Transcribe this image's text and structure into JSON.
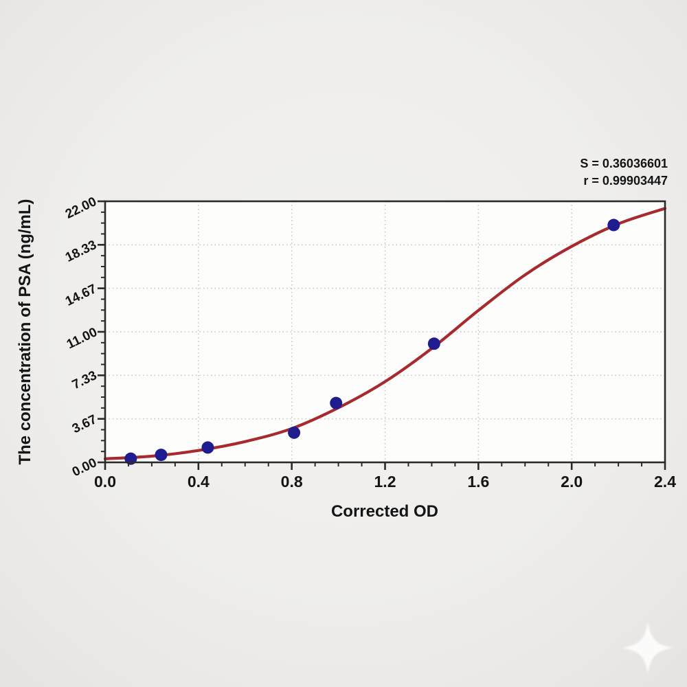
{
  "chart_data": {
    "type": "scatter",
    "title": "",
    "xlabel": "Corrected OD",
    "ylabel": "The concentration of PSA (ng/mL)",
    "annotation": {
      "line1": "S = 0.36036601",
      "line2": "r = 0.99903447"
    },
    "xlim": [
      0,
      2.4
    ],
    "ylim": [
      0,
      22
    ],
    "x_ticks": {
      "values": [
        0,
        0.4,
        0.8,
        1.2,
        1.6,
        2.0,
        2.4
      ],
      "labels": [
        "0.0",
        "0.4",
        "0.8",
        "1.2",
        "1.6",
        "2.0",
        "2.4"
      ],
      "minor_step": 0.1
    },
    "y_ticks": {
      "values": [
        0,
        3.6667,
        7.3333,
        11,
        14.6667,
        18.3333,
        22
      ],
      "labels": [
        "0.00",
        "3.67",
        "7.33",
        "11.00",
        "14.67",
        "18.33",
        "22.00"
      ],
      "minors_between": 3
    },
    "grid": true,
    "legend": false,
    "series": [
      {
        "name": "standard points",
        "kind": "scatter",
        "x": [
          0.11,
          0.24,
          0.44,
          0.81,
          0.99,
          1.41,
          2.18
        ],
        "y": [
          0.31,
          0.63,
          1.25,
          2.5,
          5.0,
          10.0,
          20.0
        ]
      },
      {
        "name": "fitted curve",
        "kind": "line",
        "x": [
          0.0,
          0.2,
          0.4,
          0.6,
          0.8,
          1.0,
          1.2,
          1.4,
          1.6,
          1.8,
          2.0,
          2.2,
          2.4
        ],
        "y": [
          0.3,
          0.52,
          1.0,
          1.75,
          2.85,
          4.6,
          6.8,
          9.6,
          12.8,
          15.8,
          18.2,
          20.1,
          21.4
        ]
      }
    ],
    "colors": {
      "curve": "#a62a2e",
      "point": "#1e1c8f",
      "grid": "#c5c3c1",
      "frame": "#2b2a28",
      "text": "#141414",
      "plot_bg": "#fdfdfc"
    }
  },
  "watermark": {
    "icon": "sparkle-star-icon"
  }
}
